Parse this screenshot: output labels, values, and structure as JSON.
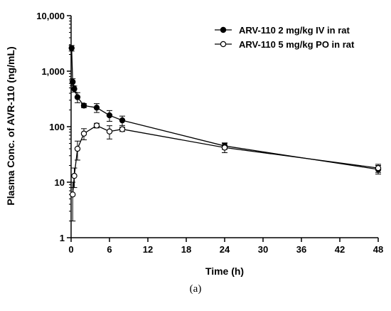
{
  "caption": "(a)",
  "chart_data": {
    "type": "line",
    "title": "",
    "xlabel": "Time (h)",
    "ylabel": "Plasma Conc. of AVR-110 (ng/mL)",
    "xlim": [
      0,
      48
    ],
    "ylim": [
      1,
      10000
    ],
    "y_scale": "log",
    "x_ticks": [
      0,
      6,
      12,
      18,
      24,
      30,
      36,
      42,
      48
    ],
    "x_tick_labels": [
      "0",
      "6",
      "12",
      "18",
      "24",
      "30",
      "36",
      "42",
      "48"
    ],
    "y_ticks": [
      1,
      10,
      100,
      1000,
      10000
    ],
    "y_tick_labels": [
      "1",
      "10",
      "100",
      "1,000",
      "10,000"
    ],
    "grid": false,
    "legend_position": "top-right",
    "series": [
      {
        "name": "ARV-110 2 mg/kg IV in rat",
        "marker": "filled-circle",
        "x": [
          0.083,
          0.25,
          0.5,
          1,
          2,
          4,
          6,
          8,
          24,
          48
        ],
        "y": [
          2600,
          640,
          480,
          340,
          240,
          220,
          160,
          130,
          45,
          17
        ],
        "err": [
          300,
          90,
          60,
          70,
          20,
          40,
          35,
          25,
          6,
          3
        ]
      },
      {
        "name": "ARV-110 5 mg/kg PO in rat",
        "marker": "open-circle",
        "x": [
          0.25,
          0.5,
          1,
          2,
          4,
          6,
          8,
          24,
          48
        ],
        "y": [
          6,
          13,
          40,
          75,
          105,
          82,
          90,
          42,
          18
        ],
        "err": [
          4,
          5,
          15,
          17,
          10,
          22,
          8,
          8,
          3
        ]
      }
    ]
  }
}
